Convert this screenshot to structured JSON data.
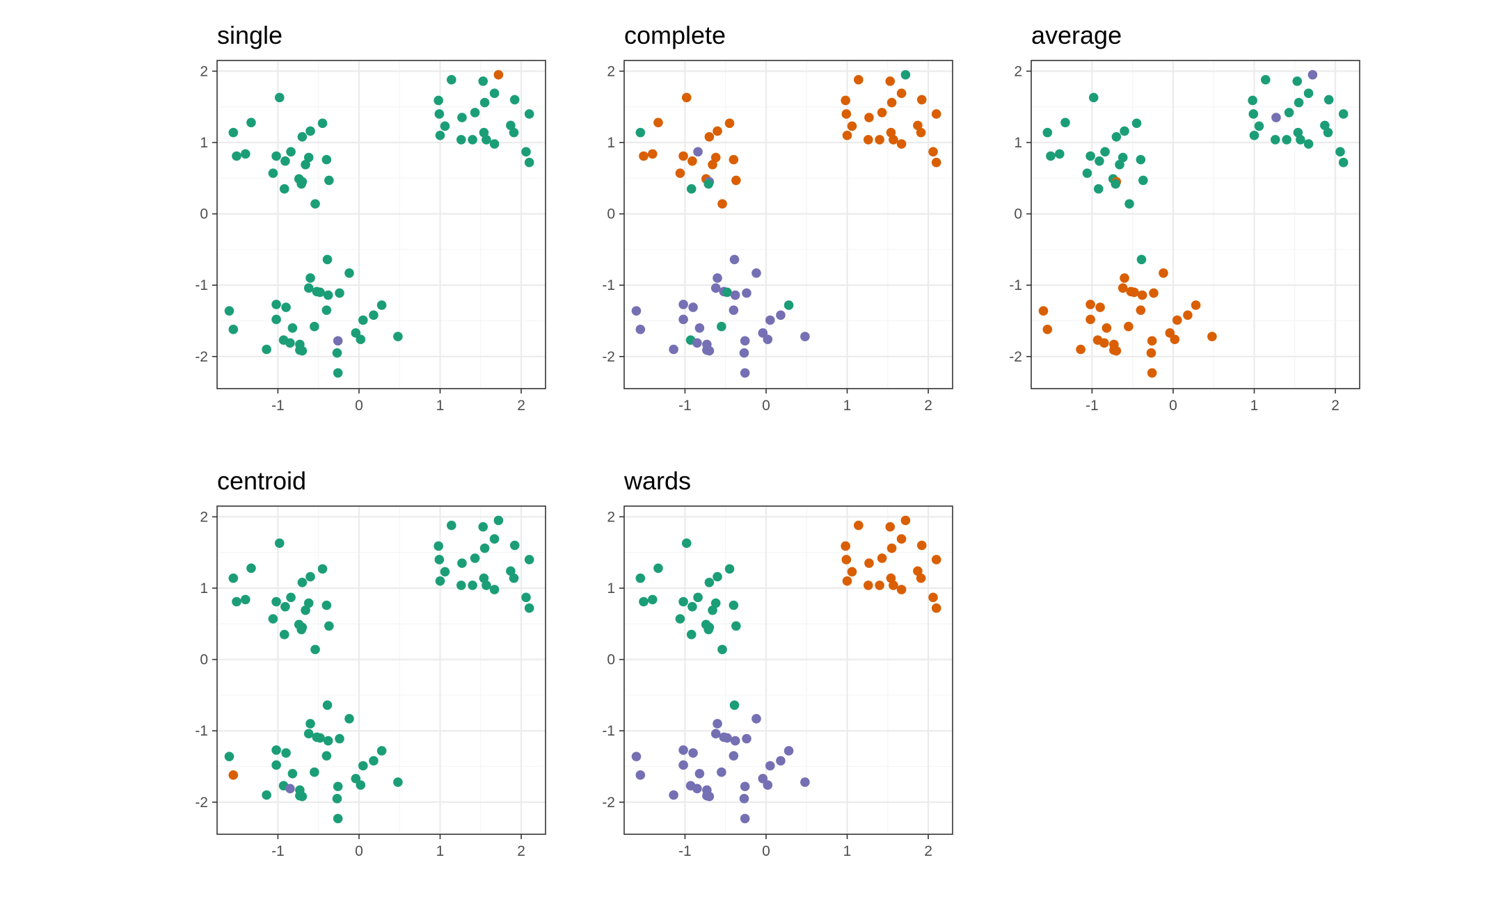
{
  "colors": {
    "cluster_1": "#1b9e77",
    "cluster_2": "#d95f02",
    "cluster_3": "#7570b3",
    "panel_border": "#333333",
    "grid_major": "#ebebeb",
    "grid_minor": "#f5f5f5",
    "tick_text": "#4d4d4d"
  },
  "chart_data": {
    "type": "scatter",
    "layout": "faceted 3 columns, 2 rows",
    "grid": true,
    "legend": "none",
    "xlim": [
      -1.75,
      2.3
    ],
    "ylim": [
      -2.45,
      2.15
    ],
    "xticks": [
      -1,
      0,
      1,
      2
    ],
    "xtick_labels": [
      "-1",
      "0",
      "1",
      "2"
    ],
    "yticks": [
      -2,
      -1,
      0,
      1,
      2
    ],
    "ytick_labels": [
      "-2",
      "-1",
      "0",
      "1",
      "2"
    ],
    "points": [
      [
        -1.55,
        1.14
      ],
      [
        -1.33,
        1.28
      ],
      [
        -0.98,
        1.63
      ],
      [
        -0.7,
        1.08
      ],
      [
        -0.6,
        1.16
      ],
      [
        -0.45,
        1.27
      ],
      [
        -1.51,
        0.81
      ],
      [
        -1.4,
        0.84
      ],
      [
        -1.02,
        0.81
      ],
      [
        -0.84,
        0.87
      ],
      [
        -0.91,
        0.74
      ],
      [
        -0.62,
        0.79
      ],
      [
        -0.4,
        0.76
      ],
      [
        -0.66,
        0.69
      ],
      [
        -1.06,
        0.57
      ],
      [
        -0.74,
        0.49
      ],
      [
        -0.7,
        0.45
      ],
      [
        -0.71,
        0.42
      ],
      [
        -0.37,
        0.47
      ],
      [
        -0.92,
        0.35
      ],
      [
        -0.54,
        0.14
      ],
      [
        -0.39,
        -0.64
      ],
      [
        -0.6,
        -0.9
      ],
      [
        -0.12,
        -0.83
      ],
      [
        -0.62,
        -1.04
      ],
      [
        -0.52,
        -1.09
      ],
      [
        -0.48,
        -1.1
      ],
      [
        -0.38,
        -1.14
      ],
      [
        -0.24,
        -1.11
      ],
      [
        -1.02,
        -1.27
      ],
      [
        -0.9,
        -1.31
      ],
      [
        -0.4,
        -1.35
      ],
      [
        -1.6,
        -1.36
      ],
      [
        0.28,
        -1.28
      ],
      [
        0.05,
        -1.49
      ],
      [
        -1.02,
        -1.48
      ],
      [
        0.18,
        -1.42
      ],
      [
        -0.55,
        -1.58
      ],
      [
        -0.82,
        -1.6
      ],
      [
        -1.55,
        -1.62
      ],
      [
        -0.04,
        -1.67
      ],
      [
        0.48,
        -1.72
      ],
      [
        0.02,
        -1.76
      ],
      [
        -0.93,
        -1.77
      ],
      [
        -0.26,
        -1.78
      ],
      [
        -0.85,
        -1.81
      ],
      [
        -0.73,
        -1.83
      ],
      [
        -1.14,
        -1.9
      ],
      [
        -0.73,
        -1.91
      ],
      [
        -0.7,
        -1.92
      ],
      [
        -0.27,
        -1.95
      ],
      [
        -0.26,
        -2.23
      ],
      [
        1.72,
        1.95
      ],
      [
        1.14,
        1.88
      ],
      [
        1.53,
        1.86
      ],
      [
        1.67,
        1.69
      ],
      [
        0.98,
        1.59
      ],
      [
        1.55,
        1.56
      ],
      [
        1.92,
        1.6
      ],
      [
        0.99,
        1.4
      ],
      [
        1.43,
        1.42
      ],
      [
        2.1,
        1.4
      ],
      [
        1.27,
        1.35
      ],
      [
        1.06,
        1.23
      ],
      [
        1.87,
        1.24
      ],
      [
        1.54,
        1.14
      ],
      [
        1.0,
        1.1
      ],
      [
        1.91,
        1.14
      ],
      [
        1.26,
        1.04
      ],
      [
        1.4,
        1.04
      ],
      [
        1.57,
        1.04
      ],
      [
        1.67,
        0.98
      ],
      [
        2.06,
        0.87
      ],
      [
        2.1,
        0.72
      ]
    ],
    "panels": [
      {
        "title": "single",
        "clusters": "11111111111111111111111111111111111111111111311111112111111111111111111111"
      },
      {
        "title": "complete",
        "clusters": "12222222232222223121233333133333313331333331333333331222222222222222222222"
      },
      {
        "title": "average",
        "clusters": "11111111111111112111112222222222222222222222222222223111111111311111111111"
      },
      {
        "title": "centroid",
        "clusters": "11111111111111111111111111111111111111121111131111111111111111111111111111"
      },
      {
        "title": "wards",
        "clusters": "11111111111111111111113333333333333333333333333333332222222222222222222222"
      }
    ]
  }
}
